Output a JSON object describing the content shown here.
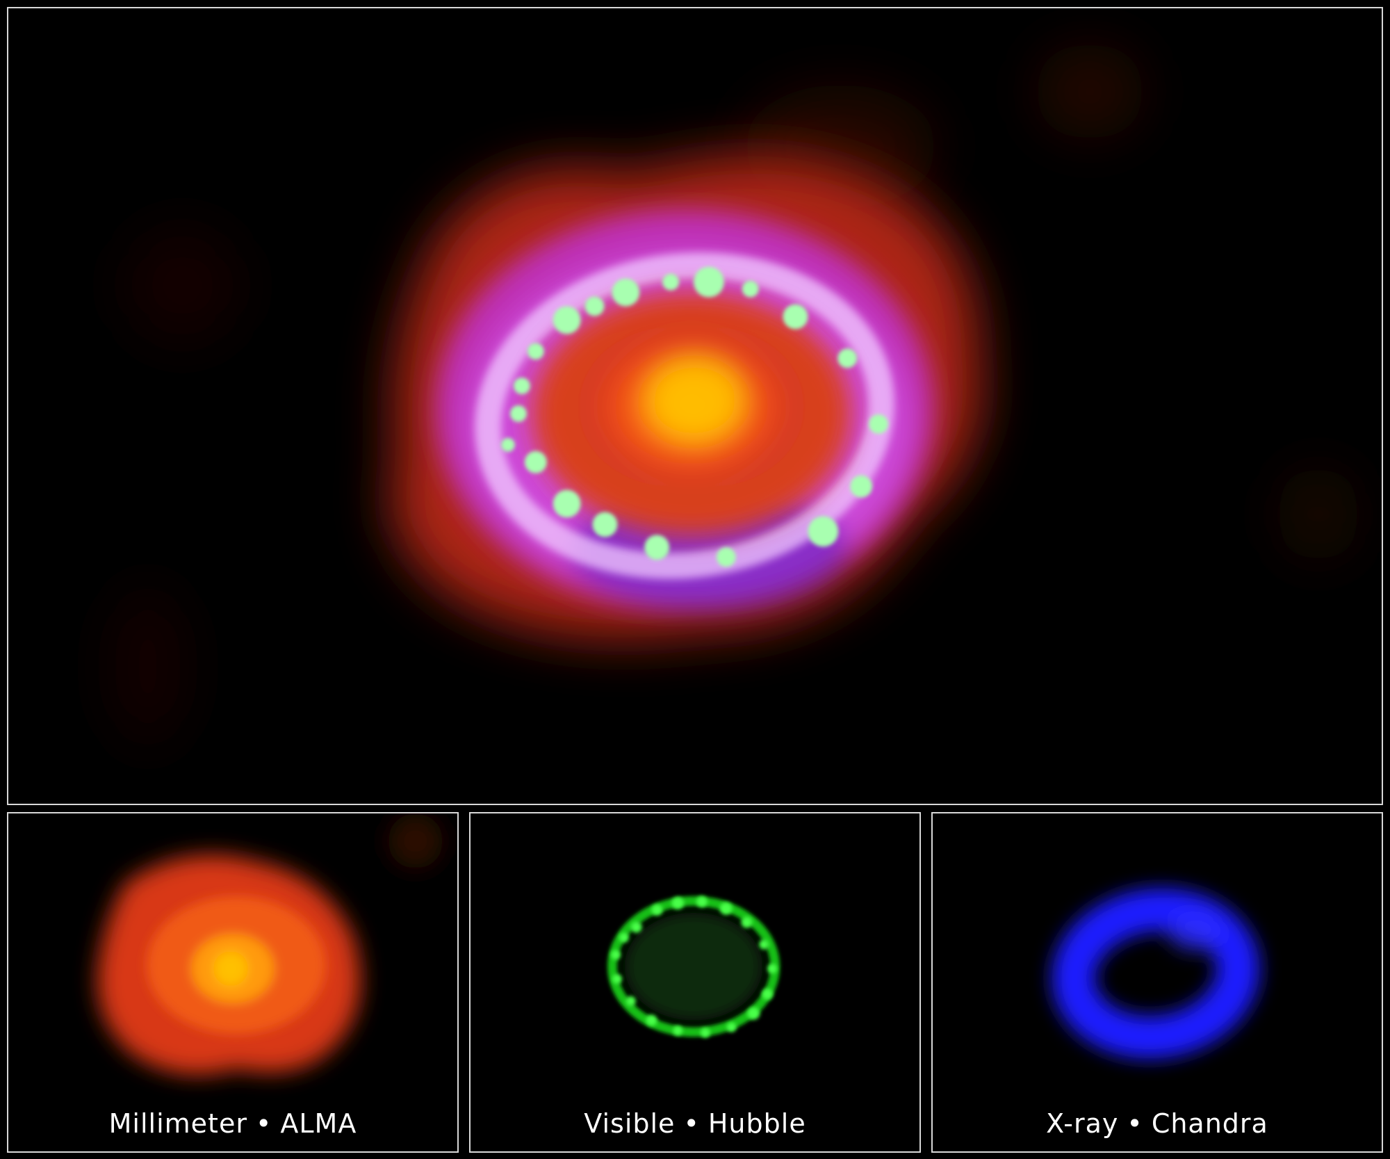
{
  "panels": [
    {
      "id": "alma",
      "wavelength": "Millimeter",
      "separator": "•",
      "observatory": "ALMA",
      "color": "#ff5a10"
    },
    {
      "id": "hubble",
      "wavelength": "Visible",
      "separator": "•",
      "observatory": "Hubble",
      "color": "#22dd22"
    },
    {
      "id": "chandra",
      "wavelength": "X-ray",
      "separator": "•",
      "observatory": "Chandra",
      "color": "#2020ff"
    }
  ],
  "composite": {
    "colors": {
      "millimeter": "#ff5a10",
      "visible": "#9cffa0",
      "xray": "#d040e0"
    }
  }
}
